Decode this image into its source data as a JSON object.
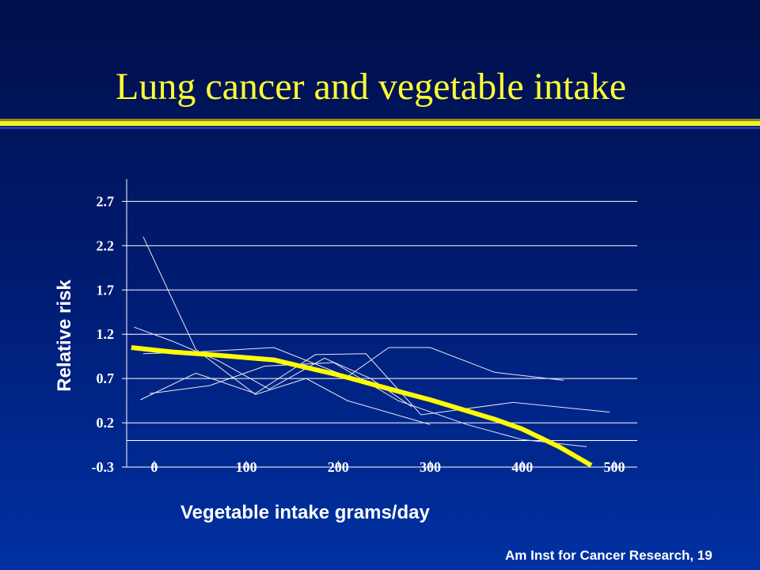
{
  "slide": {
    "title": "Lung cancer and vegetable intake",
    "source": "Am Inst for Cancer Research, 19"
  },
  "colors": {
    "title": "#ffff33",
    "summary_line": "#ffff00",
    "study_lines": "#e8e8f0",
    "axis": "#ffffff"
  },
  "chart_data": {
    "type": "line",
    "xlabel": "Vegetable intake grams/day",
    "ylabel": "Relative risk",
    "x_ticks": [
      "0",
      "100",
      "200",
      "300",
      "400",
      "500"
    ],
    "y_ticks": [
      "2.7",
      "2.2",
      "1.7",
      "1.2",
      "0.7",
      "0.2",
      "-0.3"
    ],
    "xlim": [
      -30,
      525
    ],
    "ylim": [
      -0.3,
      2.9
    ],
    "grid": "horizontal",
    "legend": "none",
    "series": [
      {
        "style": "summary",
        "x": [
          -25,
          20,
          60,
          130,
          200,
          260,
          300,
          370,
          400,
          440,
          475
        ],
        "y": [
          1.05,
          1.0,
          0.97,
          0.91,
          0.74,
          0.57,
          0.46,
          0.24,
          0.13,
          -0.07,
          -0.28
        ]
      },
      {
        "style": "study",
        "x": [
          -12,
          45,
          110,
          165,
          210,
          260,
          300
        ],
        "y": [
          2.3,
          1.03,
          0.52,
          0.7,
          0.45,
          0.3,
          0.18
        ]
      },
      {
        "style": "study",
        "x": [
          -22,
          20,
          70,
          125,
          185,
          235,
          280
        ],
        "y": [
          1.28,
          1.12,
          0.9,
          0.58,
          0.93,
          0.7,
          0.38
        ]
      },
      {
        "style": "study",
        "x": [
          -12,
          45,
          130,
          210,
          255,
          300,
          370,
          445
        ],
        "y": [
          0.98,
          1.0,
          1.05,
          0.72,
          1.05,
          1.05,
          0.77,
          0.68
        ]
      },
      {
        "style": "study",
        "x": [
          -15,
          45,
          110,
          175,
          230,
          290,
          390,
          495
        ],
        "y": [
          0.46,
          0.76,
          0.53,
          0.97,
          0.98,
          0.29,
          0.43,
          0.32
        ]
      },
      {
        "style": "study",
        "x": [
          -5,
          60,
          120,
          195,
          265,
          340,
          400,
          470
        ],
        "y": [
          0.53,
          0.62,
          0.84,
          0.88,
          0.45,
          0.18,
          0.01,
          -0.07
        ]
      }
    ]
  }
}
